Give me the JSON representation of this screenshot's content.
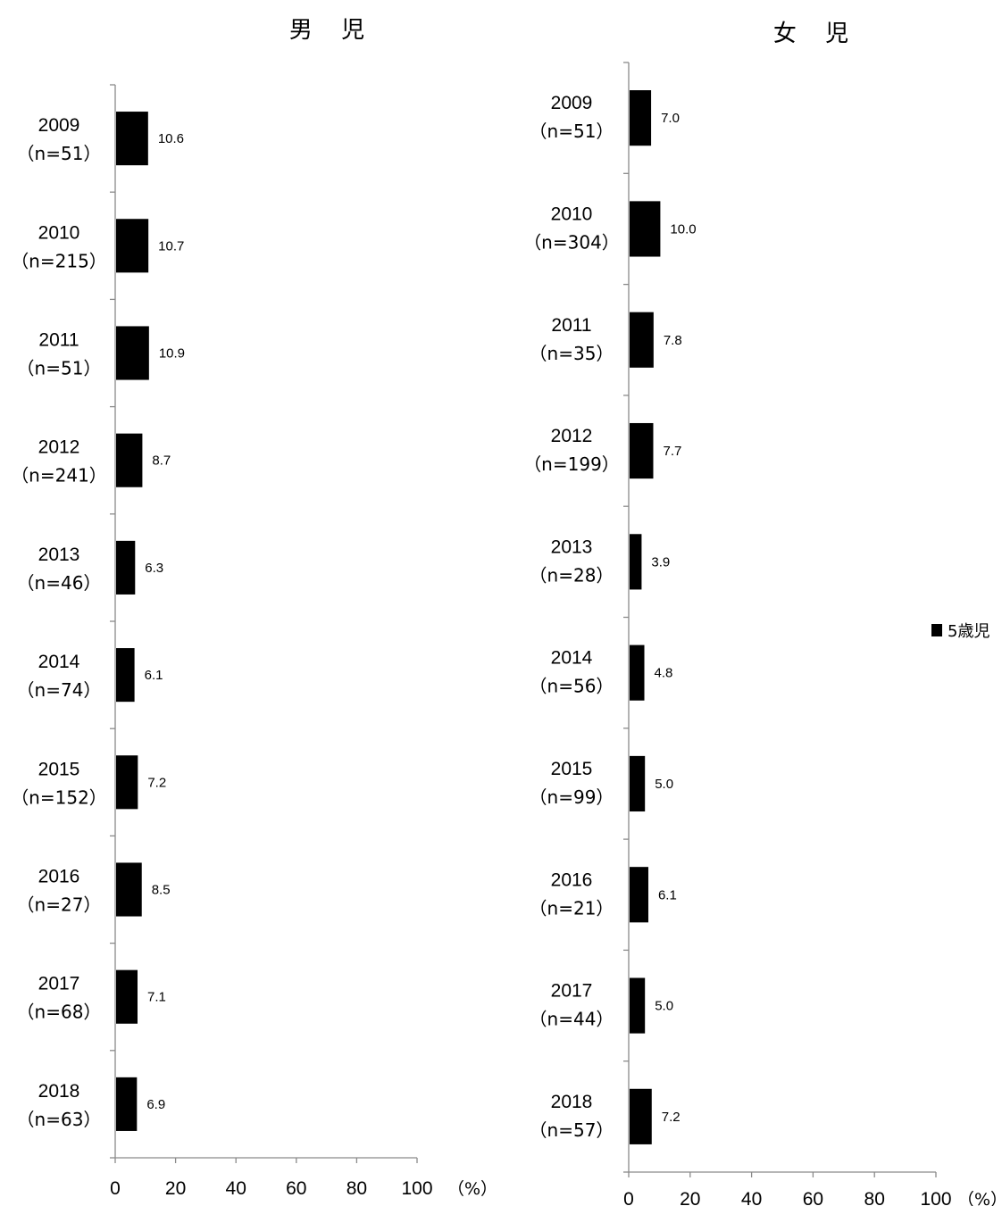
{
  "legend": {
    "label": "5歳児",
    "color": "#000000"
  },
  "chart_data": [
    {
      "type": "bar",
      "orientation": "horizontal",
      "title": "男 児",
      "categories": [
        "2009",
        "2010",
        "2011",
        "2012",
        "2013",
        "2014",
        "2015",
        "2016",
        "2017",
        "2018"
      ],
      "category_n": [
        "（n=51）",
        "（n=215）",
        "（n=51）",
        "（n=241）",
        "（n=46）",
        "（n=74）",
        "（n=152）",
        "（n=27）",
        "（n=68）",
        "（n=63）"
      ],
      "series": [
        {
          "name": "5歳児",
          "color": "#000000",
          "values": [
            10.6,
            10.7,
            10.9,
            8.7,
            6.3,
            6.1,
            7.2,
            8.5,
            7.1,
            6.9
          ],
          "labels": [
            "10.6",
            "10.7",
            "10.9",
            "8.7",
            "6.3",
            "6.1",
            "7.2",
            "8.5",
            "7.1",
            "6.9"
          ]
        }
      ],
      "xlim": [
        0,
        100
      ],
      "ticks": [
        "0",
        "20",
        "40",
        "60",
        "80",
        "100"
      ],
      "unit": "（%）",
      "grid": false,
      "legend_position": "right"
    },
    {
      "type": "bar",
      "orientation": "horizontal",
      "title": "女 児",
      "categories": [
        "2009",
        "2010",
        "2011",
        "2012",
        "2013",
        "2014",
        "2015",
        "2016",
        "2017",
        "2018"
      ],
      "category_n": [
        "（n=51）",
        "（n=304）",
        "（n=35）",
        "（n=199）",
        "（n=28）",
        "（n=56）",
        "（n=99）",
        "（n=21）",
        "（n=44）",
        "（n=57）"
      ],
      "series": [
        {
          "name": "5歳児",
          "color": "#000000",
          "values": [
            7.0,
            10.0,
            7.8,
            7.7,
            3.9,
            4.8,
            5.0,
            6.1,
            5.0,
            7.2
          ],
          "labels": [
            "7.0",
            "10.0",
            "7.8",
            "7.7",
            "3.9",
            "4.8",
            "5.0",
            "6.1",
            "5.0",
            "7.2"
          ]
        }
      ],
      "xlim": [
        0,
        100
      ],
      "ticks": [
        "0",
        "20",
        "40",
        "60",
        "80",
        "100"
      ],
      "unit": "（%）",
      "grid": false,
      "legend_position": "right"
    }
  ]
}
